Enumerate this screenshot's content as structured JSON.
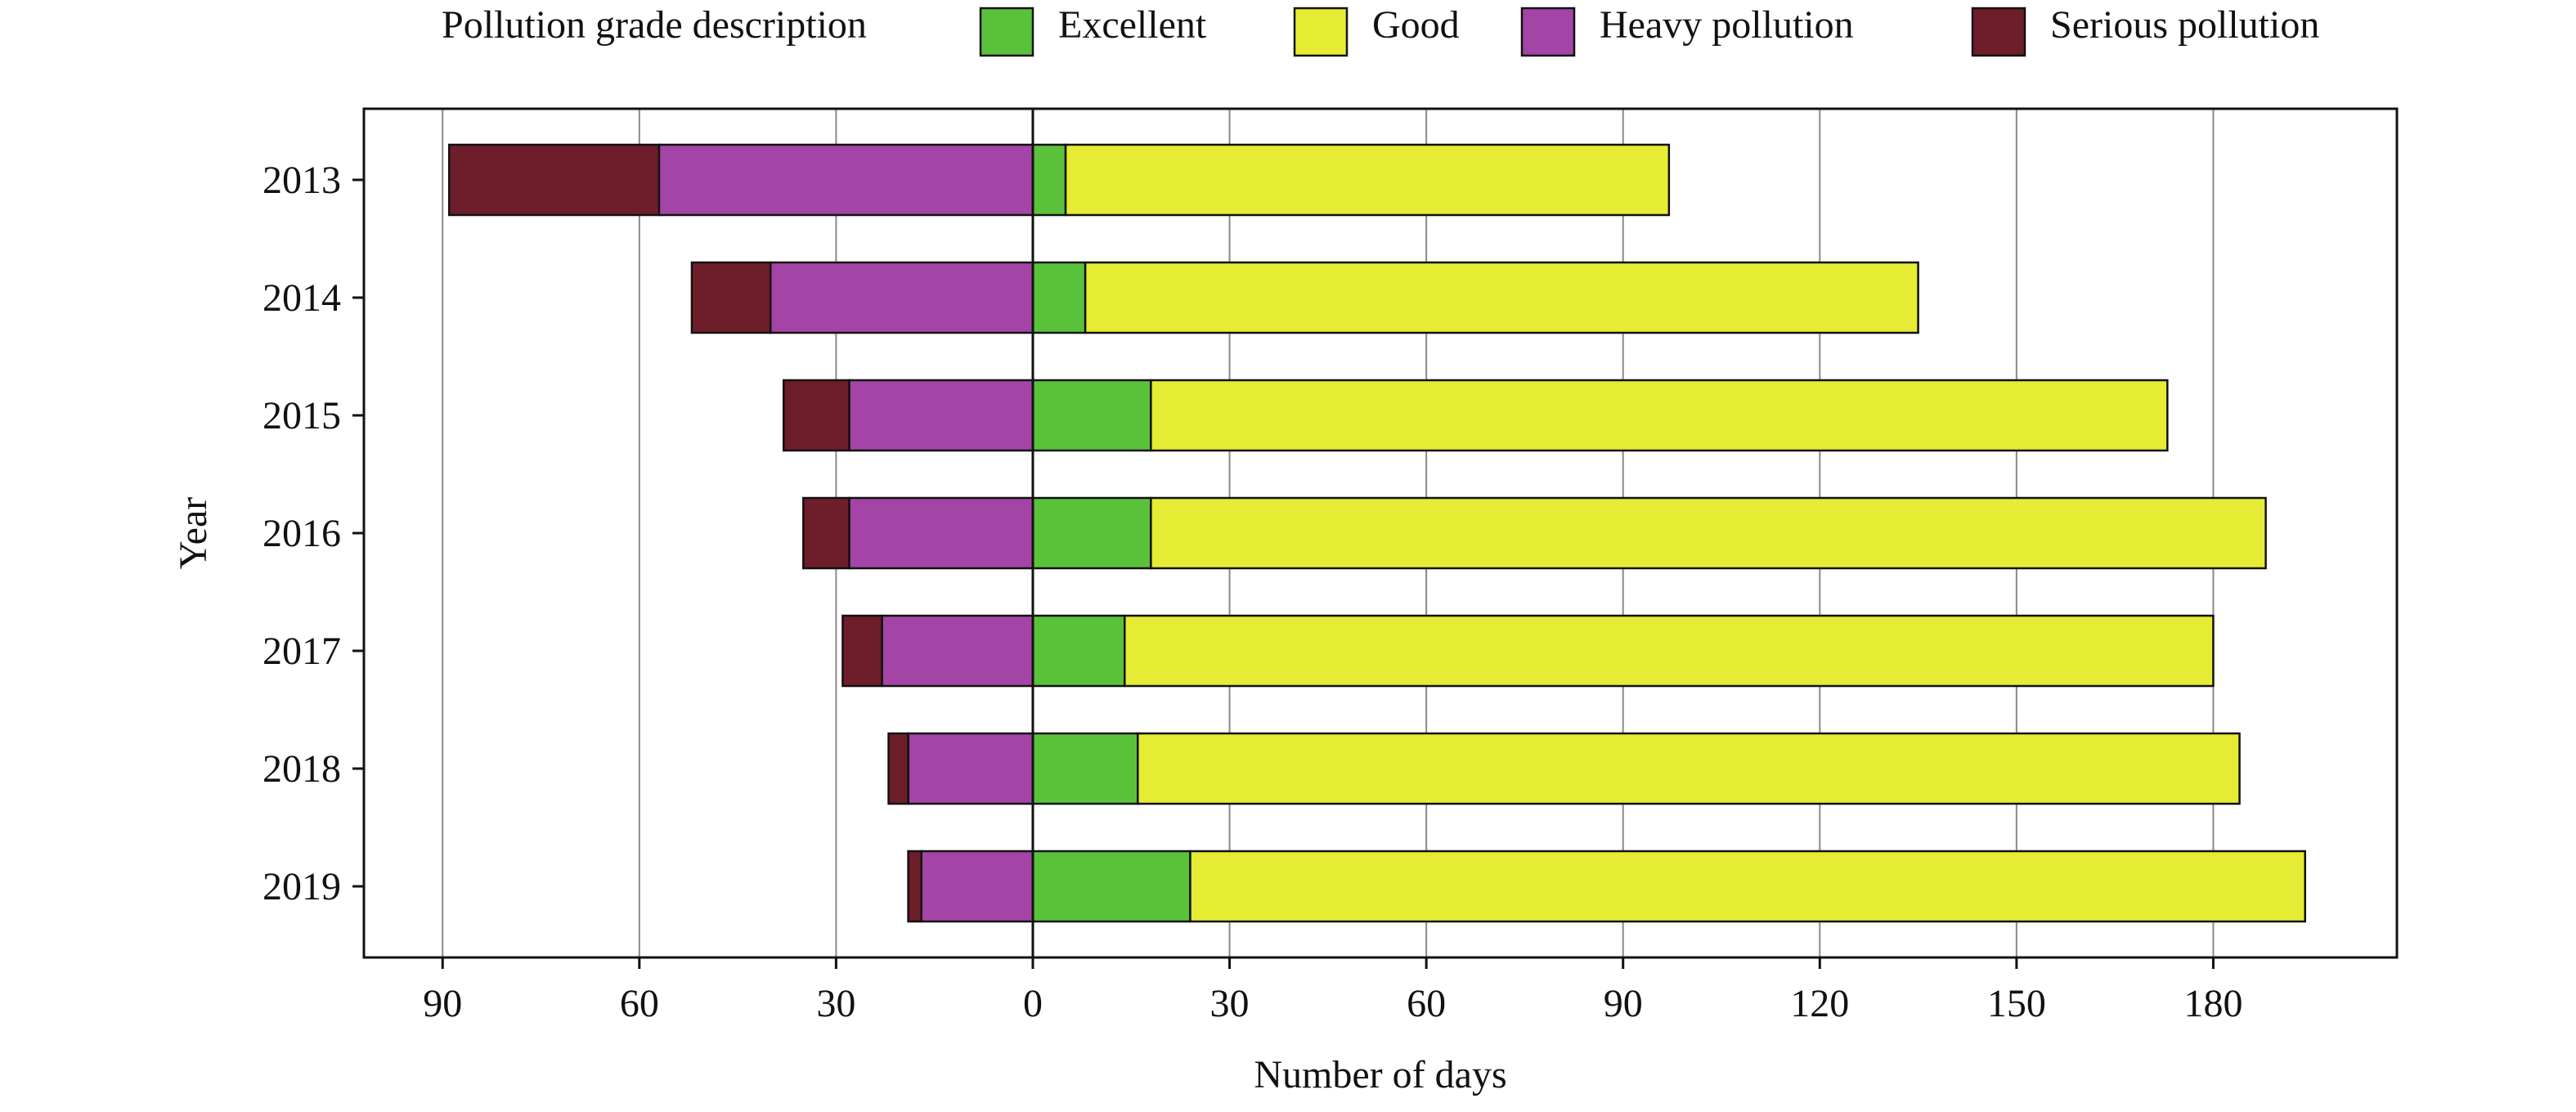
{
  "chart_data": {
    "type": "bar",
    "orientation": "horizontal",
    "stacked": "diverging",
    "categories": [
      "2013",
      "2014",
      "2015",
      "2016",
      "2017",
      "2018",
      "2019"
    ],
    "series": [
      {
        "name": "Excellent",
        "side": "positive",
        "color": "#5ac23a",
        "values": [
          5,
          8,
          18,
          18,
          14,
          16,
          24
        ]
      },
      {
        "name": "Good",
        "side": "positive",
        "color": "#e6ec34",
        "values": [
          92,
          127,
          155,
          170,
          166,
          168,
          170
        ]
      },
      {
        "name": "Heavy pollution",
        "side": "negative",
        "color": "#a444a7",
        "values": [
          57,
          40,
          28,
          28,
          23,
          19,
          17
        ]
      },
      {
        "name": "Serious pollution",
        "side": "negative",
        "color": "#6e1d2b",
        "values": [
          32,
          12,
          10,
          7,
          6,
          3,
          2
        ]
      }
    ],
    "legend_title": "Pollution grade description",
    "legend_position": "top",
    "xlabel": "Number of days",
    "ylabel": "Year",
    "xticks": [
      -90,
      -60,
      -30,
      0,
      30,
      60,
      90,
      120,
      150,
      180
    ],
    "xtick_labels": [
      "90",
      "60",
      "30",
      "0",
      "30",
      "60",
      "90",
      "120",
      "150",
      "180"
    ],
    "xlim": [
      -102,
      208
    ],
    "grid": "vertical"
  }
}
